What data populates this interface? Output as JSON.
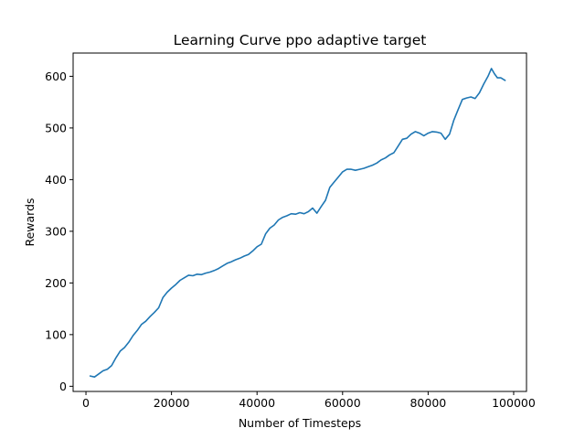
{
  "chart_data": {
    "type": "line",
    "title": "Learning Curve ppo adaptive target",
    "xlabel": "Number of Timesteps",
    "ylabel": "Rewards",
    "xlim": [
      -3000,
      103000
    ],
    "ylim": [
      -10,
      645
    ],
    "xticks": [
      0,
      20000,
      40000,
      60000,
      80000,
      100000
    ],
    "yticks": [
      0,
      100,
      200,
      300,
      400,
      500,
      600
    ],
    "grid": false,
    "legend": "none",
    "series": [
      {
        "color": "#1f77b4",
        "x": [
          1000,
          2000,
          3000,
          4000,
          5000,
          6000,
          7000,
          8000,
          9000,
          10000,
          11000,
          12000,
          13000,
          14000,
          15000,
          16000,
          17000,
          18000,
          19000,
          20000,
          21000,
          22000,
          23000,
          24000,
          25000,
          26000,
          27000,
          28000,
          29000,
          30000,
          31000,
          32000,
          33000,
          34000,
          35000,
          36000,
          37000,
          38000,
          39000,
          40000,
          41000,
          42000,
          43000,
          44000,
          45000,
          46000,
          47000,
          48000,
          49000,
          50000,
          51000,
          52000,
          53000,
          54000,
          55000,
          56000,
          57000,
          58000,
          59000,
          60000,
          61000,
          62000,
          63000,
          64000,
          65000,
          66000,
          67000,
          68000,
          69000,
          70000,
          71000,
          72000,
          73000,
          74000,
          75000,
          76000,
          77000,
          78000,
          79000,
          80000,
          81000,
          82000,
          83000,
          84000,
          85000,
          86000,
          87000,
          88000,
          89000,
          90000,
          91000,
          92000,
          93000,
          94000,
          94800,
          95500,
          96200,
          97000,
          98000
        ],
        "y": [
          20,
          18,
          24,
          30,
          33,
          40,
          55,
          68,
          75,
          85,
          98,
          108,
          120,
          126,
          135,
          143,
          152,
          172,
          182,
          190,
          197,
          205,
          210,
          215,
          214,
          217,
          216,
          219,
          221,
          224,
          228,
          233,
          238,
          241,
          245,
          248,
          252,
          255,
          262,
          270,
          275,
          295,
          306,
          312,
          322,
          327,
          330,
          334,
          333,
          336,
          334,
          338,
          345,
          335,
          348,
          360,
          385,
          395,
          405,
          415,
          420,
          420,
          418,
          420,
          422,
          425,
          428,
          432,
          438,
          442,
          448,
          452,
          465,
          478,
          480,
          488,
          493,
          490,
          485,
          490,
          493,
          492,
          490,
          478,
          488,
          515,
          535,
          555,
          558,
          560,
          557,
          568,
          585,
          600,
          615,
          605,
          597,
          597,
          592
        ]
      }
    ]
  }
}
